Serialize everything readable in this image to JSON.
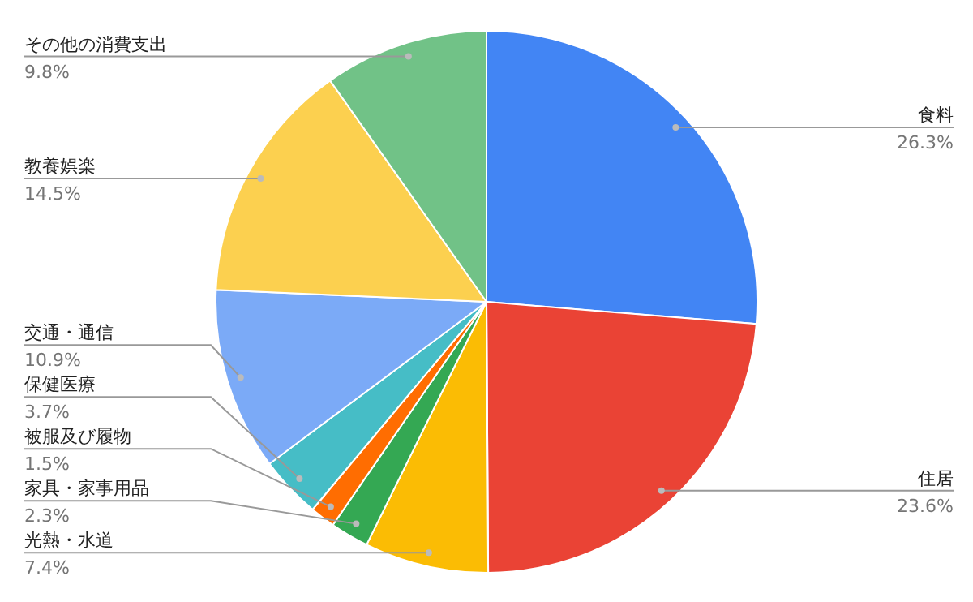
{
  "chart_data": {
    "type": "pie",
    "categories": [
      "食料",
      "住居",
      "光熱・水道",
      "家具・家事用品",
      "被服及び履物",
      "保健医療",
      "交通・通信",
      "教養娯楽",
      "その他の消費支出"
    ],
    "values": [
      26.3,
      23.6,
      7.4,
      2.3,
      1.5,
      3.7,
      10.9,
      14.5,
      9.8
    ],
    "colors": [
      "#4285f4",
      "#ea4335",
      "#fbbc04",
      "#34a853",
      "#ff6d01",
      "#46bdc6",
      "#7baaf7",
      "#fcd04f",
      "#71c287"
    ],
    "value_labels": [
      "26.3%",
      "23.6%",
      "7.4%",
      "2.3%",
      "1.5%",
      "3.7%",
      "10.9%",
      "14.5%",
      "9.8%"
    ]
  }
}
